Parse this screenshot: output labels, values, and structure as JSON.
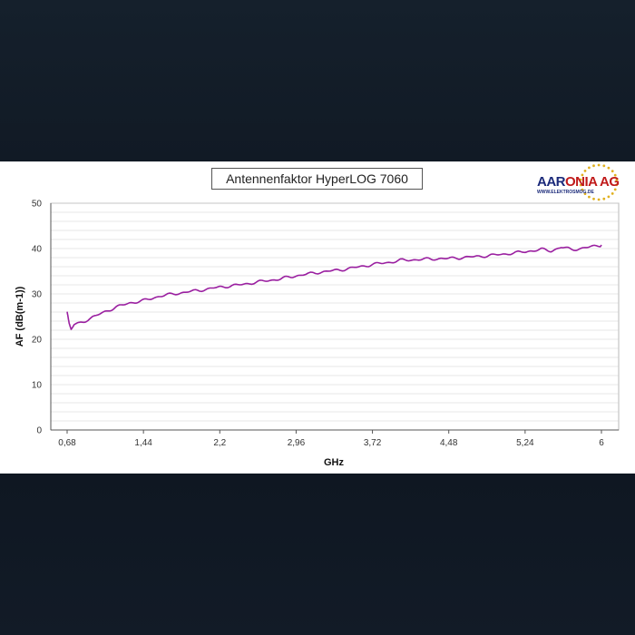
{
  "chart_data": {
    "type": "line",
    "title": "Antennenfaktor HyperLOG 7060",
    "xlabel": "GHz",
    "ylabel": "AF (dB(m-1))",
    "x_ticks": [
      "0,68",
      "1,44",
      "2,2",
      "2,96",
      "3,72",
      "4,48",
      "5,24",
      "6"
    ],
    "y_ticks": [
      "0",
      "10",
      "20",
      "30",
      "40",
      "50"
    ],
    "xlim": [
      0.68,
      6.0
    ],
    "ylim": [
      0,
      50
    ],
    "grid": true,
    "legend": "none",
    "series": [
      {
        "color": "#9a1fa0",
        "x": [
          0.68,
          0.7,
          0.72,
          0.75,
          0.8,
          0.9,
          1.0,
          1.1,
          1.2,
          1.3,
          1.44,
          1.6,
          1.8,
          2.0,
          2.2,
          2.4,
          2.6,
          2.8,
          2.96,
          3.2,
          3.4,
          3.6,
          3.72,
          3.9,
          4.0,
          4.2,
          4.4,
          4.48,
          4.6,
          4.8,
          5.0,
          5.24,
          5.4,
          5.5,
          5.6,
          5.7,
          5.8,
          5.9,
          6.0
        ],
        "values": [
          26.0,
          23.5,
          22.2,
          23.2,
          23.5,
          24.5,
          25.5,
          26.5,
          27.3,
          28.0,
          28.5,
          29.5,
          30.2,
          30.8,
          31.5,
          32.0,
          32.7,
          33.3,
          34.0,
          34.8,
          35.3,
          36.0,
          36.5,
          37.0,
          37.4,
          37.6,
          37.8,
          37.8,
          38.0,
          38.3,
          38.7,
          39.3,
          39.8,
          39.5,
          40.3,
          39.8,
          40.0,
          40.4,
          40.8
        ]
      }
    ]
  },
  "logo": {
    "brand_a": "AAR",
    "brand_b": "ONIA AG",
    "sub": "WWW.ELEKTROSMOG.DE"
  }
}
